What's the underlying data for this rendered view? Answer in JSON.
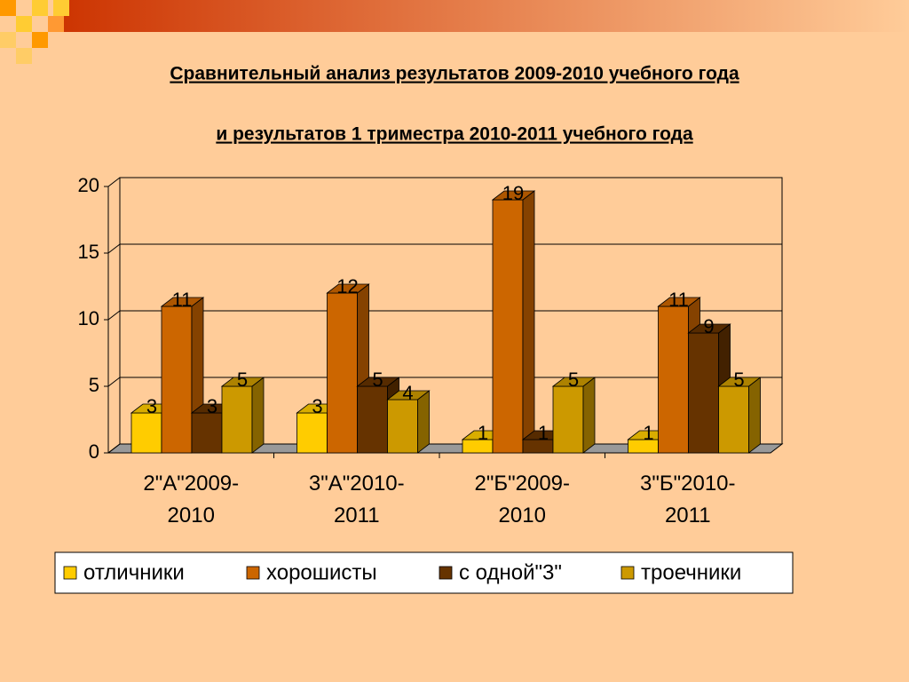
{
  "chart_data": {
    "type": "bar3d",
    "title": "Сравнительный анализ результатов 2009-2010 учебного года",
    "subtitle": "и  результатов  1 триместра 2010-2011 учебного года",
    "categories": [
      "2\"А\"2009-2010",
      "3\"А\"2010-2011",
      "2\"Б\"2009-2010",
      "3\"Б\"2010-2011"
    ],
    "series": [
      {
        "name": "отличники",
        "color": "#ffcc00",
        "values": [
          3,
          3,
          1,
          1
        ]
      },
      {
        "name": "хорошисты",
        "color": "#cc6600",
        "values": [
          11,
          12,
          19,
          11
        ]
      },
      {
        "name": "с одной\"3\"",
        "color": "#663300",
        "values": [
          3,
          5,
          1,
          9
        ]
      },
      {
        "name": "троечники",
        "color": "#cc9900",
        "values": [
          5,
          4,
          5,
          5
        ]
      }
    ],
    "ylim": [
      0,
      20
    ],
    "yticks": [
      0,
      5,
      10,
      15,
      20
    ],
    "grid": true,
    "legend": "bottom"
  }
}
